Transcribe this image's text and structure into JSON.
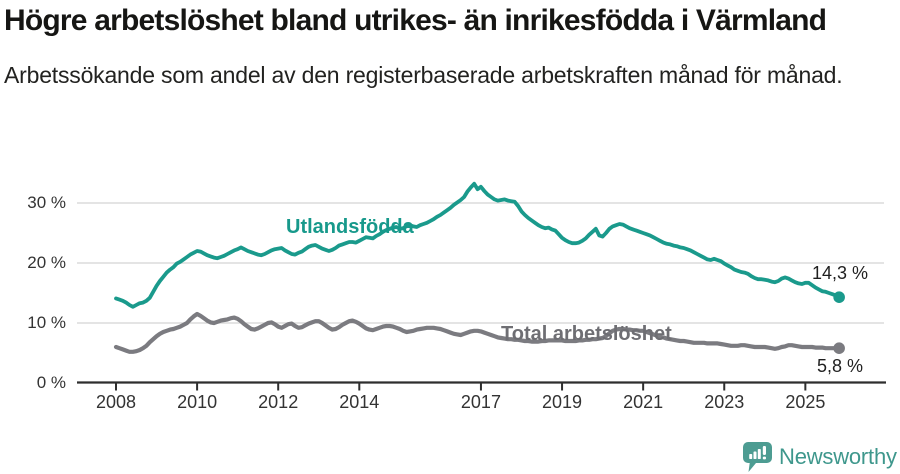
{
  "header": {
    "title": "Högre arbetslöshet bland utrikes- än inrikesfödda i Värmland",
    "subtitle": "Arbetssökande som andel av den registerbaserade arbetskraften månad för månad."
  },
  "chart_data": {
    "type": "line",
    "title": "Högre arbetslöshet bland utrikes- än inrikesfödda i Värmland",
    "subtitle": "Arbetssökande som andel av den registerbaserade arbetskraften månad för månad.",
    "unit": "%",
    "x_start_year": 2008,
    "x_points_per_year": 12,
    "x_ticks": [
      2008,
      2010,
      2012,
      2014,
      2017,
      2019,
      2021,
      2023,
      2025
    ],
    "y_ticks": [
      {
        "value": 0,
        "label": "0 %"
      },
      {
        "value": 10,
        "label": "10 %"
      },
      {
        "value": 20,
        "label": "20 %"
      },
      {
        "value": 30,
        "label": "30 %"
      }
    ],
    "y_range": [
      0,
      34
    ],
    "grid": "horizontal",
    "legend": "inline-labels",
    "series": [
      {
        "name": "Utlandsfödda",
        "color": "#1a9a8c",
        "end_value": 14.3,
        "end_label": "14,3 %",
        "values": [
          14.1,
          13.9,
          13.7,
          13.4,
          13.0,
          12.7,
          13.0,
          13.3,
          13.4,
          13.7,
          14.2,
          15.2,
          16.2,
          17.0,
          17.7,
          18.4,
          18.9,
          19.3,
          19.9,
          20.2,
          20.6,
          21.0,
          21.4,
          21.7,
          22.0,
          21.9,
          21.6,
          21.3,
          21.1,
          20.9,
          20.8,
          21.0,
          21.2,
          21.5,
          21.8,
          22.1,
          22.3,
          22.6,
          22.3,
          22.0,
          21.8,
          21.6,
          21.4,
          21.3,
          21.5,
          21.8,
          22.1,
          22.3,
          22.4,
          22.5,
          22.1,
          21.8,
          21.5,
          21.4,
          21.7,
          21.9,
          22.3,
          22.7,
          22.9,
          23.0,
          22.7,
          22.4,
          22.2,
          22.0,
          22.2,
          22.5,
          22.9,
          23.1,
          23.3,
          23.5,
          23.5,
          23.4,
          23.7,
          24.0,
          24.3,
          24.2,
          24.1,
          24.5,
          24.8,
          25.2,
          25.5,
          25.7,
          25.9,
          26.0,
          25.7,
          25.8,
          26.2,
          26.3,
          26.1,
          26.0,
          26.3,
          26.5,
          26.7,
          27.0,
          27.3,
          27.7,
          28.0,
          28.4,
          28.8,
          29.2,
          29.7,
          30.1,
          30.5,
          31.0,
          31.9,
          32.6,
          33.2,
          32.3,
          32.7,
          32.0,
          31.4,
          31.0,
          30.6,
          30.4,
          30.5,
          30.6,
          30.4,
          30.3,
          30.2,
          29.5,
          28.6,
          28.0,
          27.5,
          27.1,
          26.7,
          26.3,
          26.0,
          25.8,
          25.9,
          25.6,
          25.4,
          24.8,
          24.2,
          23.8,
          23.5,
          23.3,
          23.3,
          23.4,
          23.7,
          24.1,
          24.7,
          25.2,
          25.7,
          24.6,
          24.4,
          25.0,
          25.7,
          26.1,
          26.3,
          26.5,
          26.4,
          26.1,
          25.8,
          25.6,
          25.4,
          25.2,
          25.0,
          24.8,
          24.6,
          24.3,
          24.0,
          23.7,
          23.4,
          23.2,
          23.1,
          22.9,
          22.8,
          22.6,
          22.5,
          22.3,
          22.1,
          21.8,
          21.5,
          21.2,
          20.9,
          20.6,
          20.5,
          20.7,
          20.5,
          20.3,
          19.9,
          19.6,
          19.3,
          18.9,
          18.7,
          18.5,
          18.4,
          18.2,
          17.8,
          17.5,
          17.3,
          17.3,
          17.2,
          17.1,
          16.9,
          16.8,
          17.0,
          17.4,
          17.6,
          17.4,
          17.1,
          16.8,
          16.6,
          16.5,
          16.7,
          16.7,
          16.3,
          15.9,
          15.6,
          15.3,
          15.2,
          15.0,
          14.8,
          14.6,
          14.3
        ]
      },
      {
        "name": "Total arbetslöshet",
        "color": "#7b7b80",
        "end_value": 5.8,
        "end_label": "5,8 %",
        "values": [
          6.0,
          5.8,
          5.6,
          5.4,
          5.2,
          5.2,
          5.3,
          5.5,
          5.8,
          6.2,
          6.8,
          7.3,
          7.8,
          8.2,
          8.5,
          8.7,
          8.9,
          9.0,
          9.2,
          9.4,
          9.7,
          10.0,
          10.6,
          11.1,
          11.5,
          11.2,
          10.8,
          10.4,
          10.1,
          10.0,
          10.2,
          10.4,
          10.5,
          10.6,
          10.8,
          10.9,
          10.7,
          10.3,
          9.8,
          9.4,
          9.0,
          8.9,
          9.1,
          9.4,
          9.7,
          10.0,
          10.1,
          9.8,
          9.4,
          9.2,
          9.5,
          9.8,
          9.9,
          9.5,
          9.2,
          9.3,
          9.6,
          9.9,
          10.1,
          10.3,
          10.3,
          10.0,
          9.6,
          9.2,
          8.9,
          9.0,
          9.3,
          9.7,
          10.0,
          10.3,
          10.4,
          10.2,
          9.9,
          9.5,
          9.1,
          8.9,
          8.8,
          9.0,
          9.2,
          9.4,
          9.5,
          9.5,
          9.4,
          9.2,
          9.0,
          8.7,
          8.5,
          8.6,
          8.7,
          8.9,
          9.0,
          9.1,
          9.2,
          9.2,
          9.2,
          9.1,
          9.0,
          8.8,
          8.6,
          8.4,
          8.2,
          8.1,
          8.0,
          8.2,
          8.4,
          8.6,
          8.7,
          8.7,
          8.6,
          8.4,
          8.2,
          8.0,
          7.8,
          7.6,
          7.5,
          7.4,
          7.3,
          7.3,
          7.2,
          7.2,
          7.1,
          7.0,
          7.0,
          6.9,
          6.9,
          6.9,
          7.0,
          7.0,
          7.1,
          7.1,
          7.1,
          7.1,
          7.1,
          7.0,
          7.0,
          7.0,
          7.0,
          7.1,
          7.1,
          7.2,
          7.2,
          7.3,
          7.3,
          7.4,
          7.5,
          7.8,
          8.3,
          8.7,
          8.9,
          9.0,
          9.0,
          8.9,
          8.9,
          8.8,
          8.8,
          8.7,
          8.7,
          8.5,
          8.3,
          8.1,
          7.9,
          7.7,
          7.6,
          7.4,
          7.3,
          7.2,
          7.1,
          7.0,
          7.0,
          6.9,
          6.8,
          6.7,
          6.7,
          6.7,
          6.7,
          6.6,
          6.6,
          6.6,
          6.6,
          6.5,
          6.4,
          6.3,
          6.2,
          6.2,
          6.2,
          6.3,
          6.3,
          6.2,
          6.1,
          6.0,
          6.0,
          6.0,
          6.0,
          5.9,
          5.8,
          5.7,
          5.8,
          6.0,
          6.1,
          6.3,
          6.3,
          6.2,
          6.1,
          6.0,
          6.0,
          6.0,
          6.0,
          5.9,
          5.9,
          5.9,
          5.8,
          5.8,
          5.8,
          5.8,
          5.8
        ]
      }
    ]
  },
  "footer": {
    "brand": "Newsworthy",
    "brand_color": "#3e978c"
  }
}
